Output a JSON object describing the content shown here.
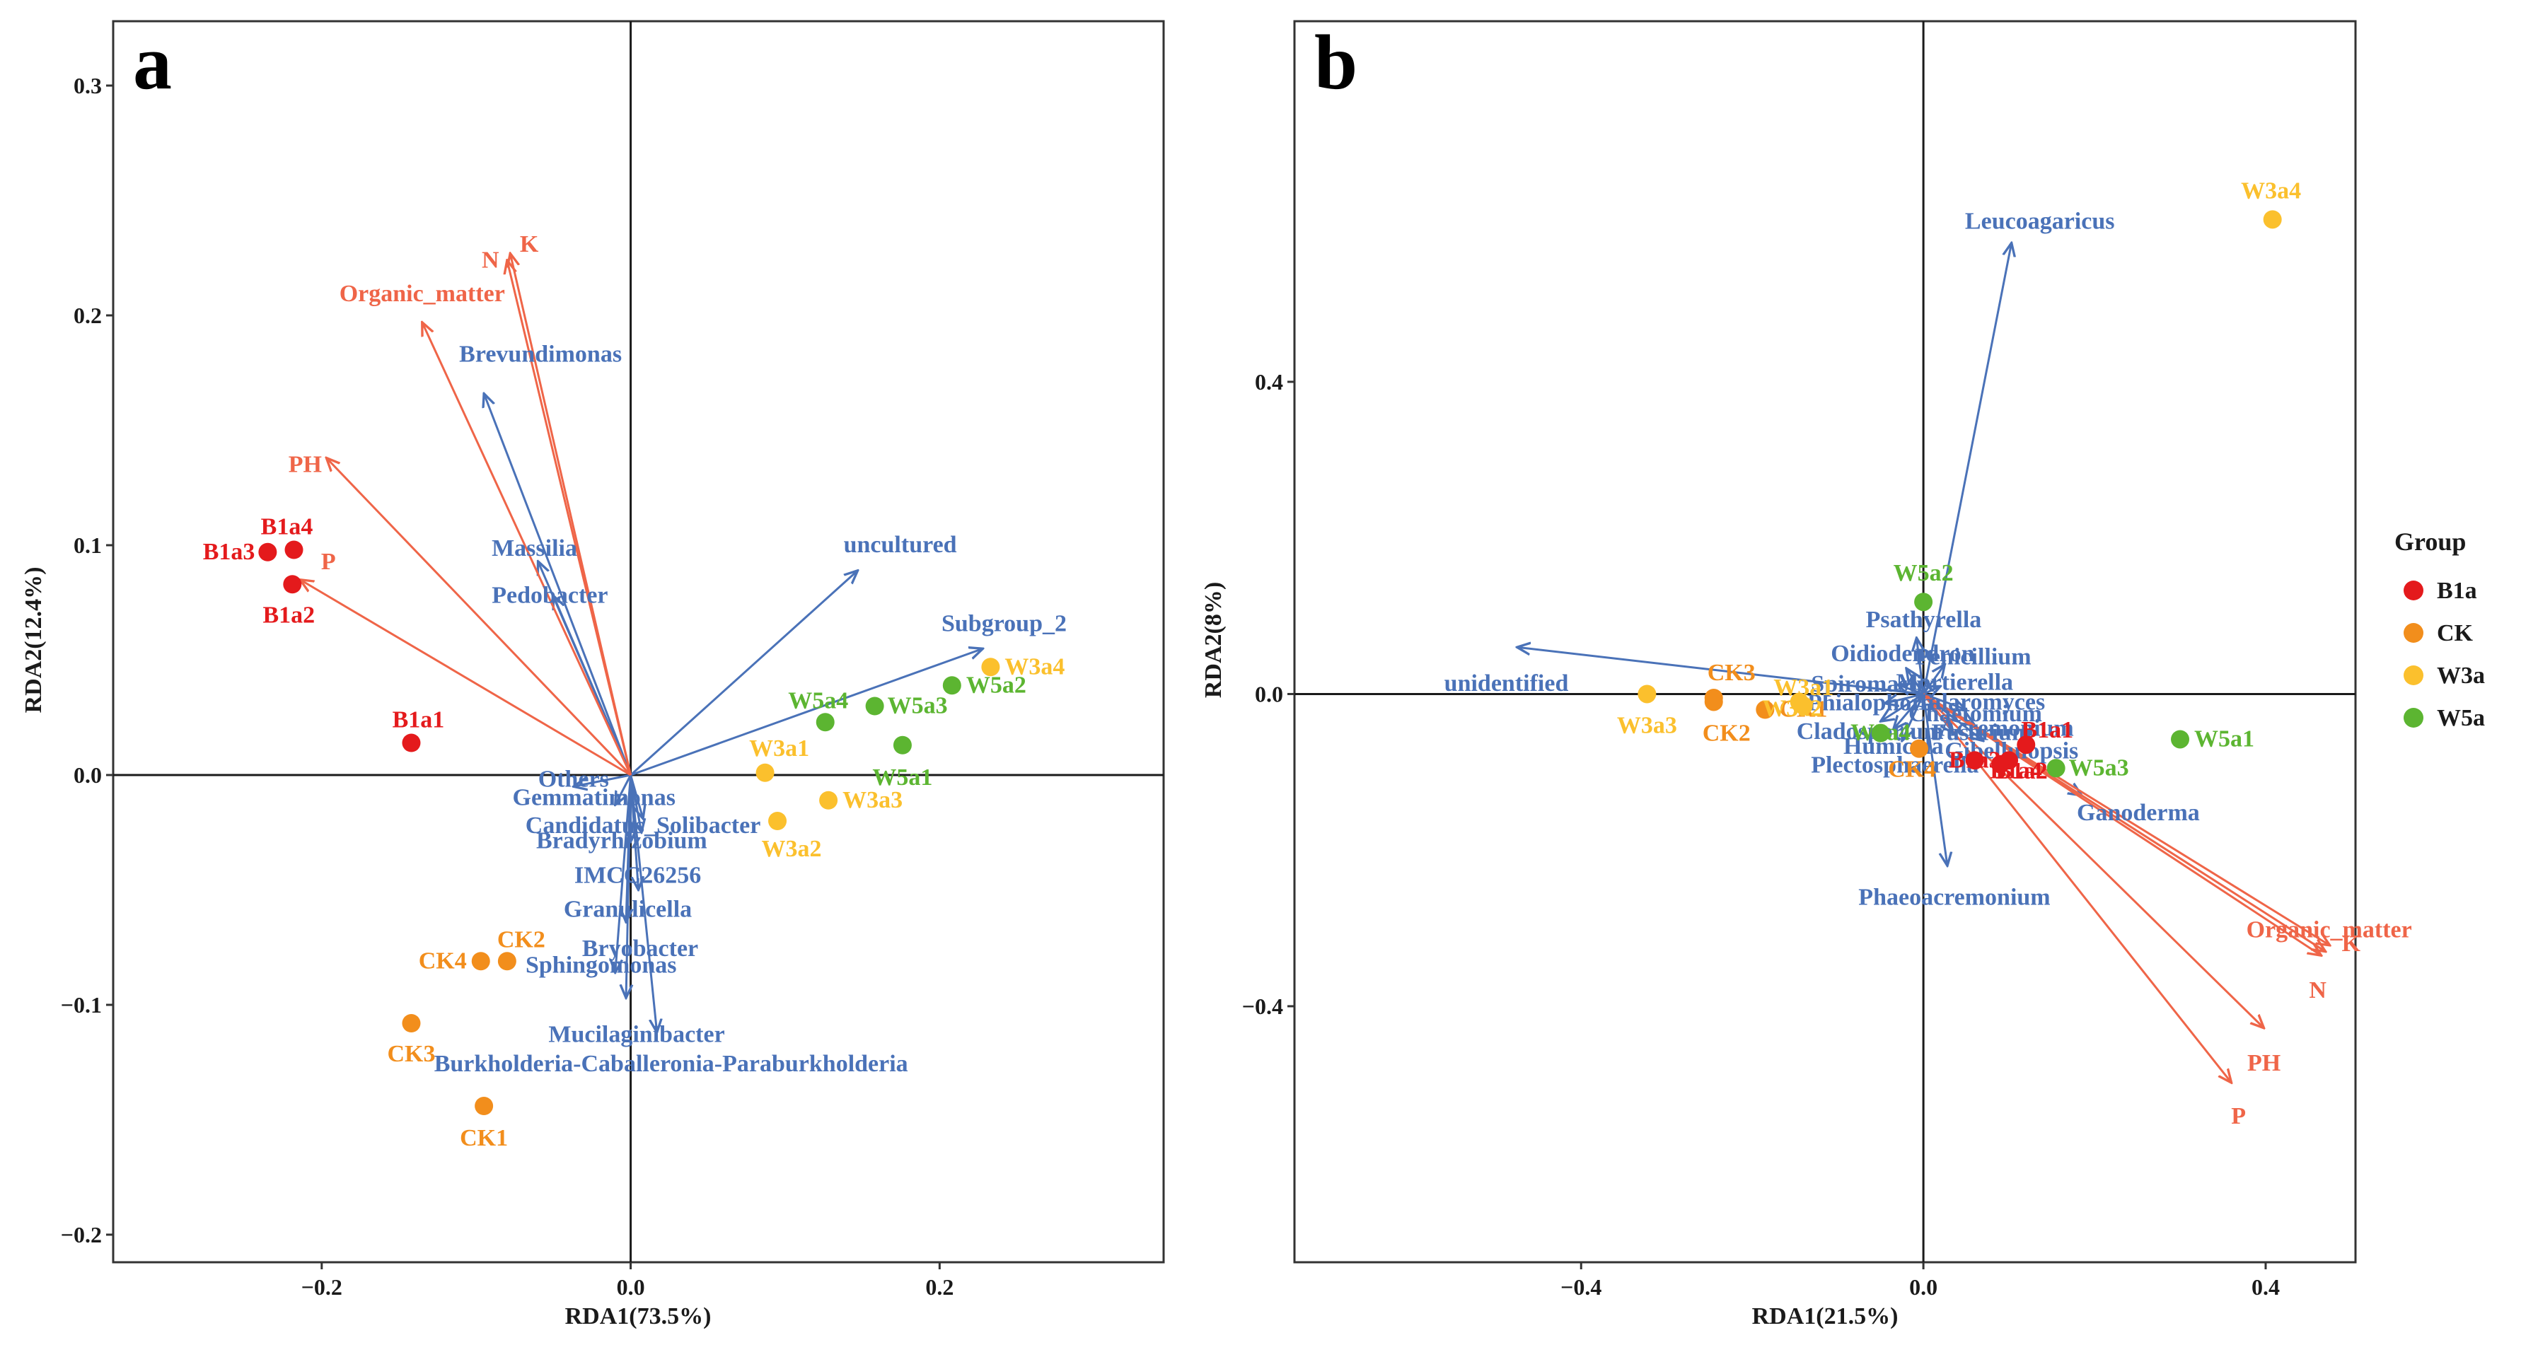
{
  "colors": {
    "B1a": "#e41a1c",
    "CK": "#f28e1c",
    "W3a": "#fbc02d",
    "W5a": "#5cb531",
    "env": "#ef6548",
    "species": "#4a72b8"
  },
  "legend": {
    "title": "Group",
    "items": [
      "B1a",
      "CK",
      "W3a",
      "W5a"
    ]
  },
  "chart_data": [
    {
      "type": "scatter",
      "panel_label": "a",
      "xlabel": "RDA1(73.5%)",
      "ylabel": "RDA2(12.4%)",
      "xlim": [
        -0.335,
        0.345
      ],
      "ylim": [
        -0.212,
        0.328
      ],
      "xticks": [
        -0.2,
        0.0,
        0.2
      ],
      "xtick_labels": [
        "−0.2",
        "0.0",
        "0.2"
      ],
      "yticks": [
        -0.2,
        -0.1,
        0.0,
        0.1,
        0.2,
        0.3
      ],
      "ytick_labels": [
        "−0.2",
        "−0.1",
        "0.0",
        "0.1",
        "0.2",
        "0.3"
      ],
      "points": [
        {
          "label": "B1a3",
          "group": "B1a",
          "x": -0.235,
          "y": 0.097
        },
        {
          "label": "B1a4",
          "group": "B1a",
          "x": -0.218,
          "y": 0.098
        },
        {
          "label": "B1a2",
          "group": "B1a",
          "x": -0.219,
          "y": 0.083
        },
        {
          "label": "B1a1",
          "group": "B1a",
          "x": -0.142,
          "y": 0.014
        },
        {
          "label": "CK2",
          "group": "CK",
          "x": -0.08,
          "y": -0.081
        },
        {
          "label": "CK4",
          "group": "CK",
          "x": -0.097,
          "y": -0.081
        },
        {
          "label": "CK3",
          "group": "CK",
          "x": -0.142,
          "y": -0.108
        },
        {
          "label": "CK1",
          "group": "CK",
          "x": -0.095,
          "y": -0.144
        },
        {
          "label": "W3a4",
          "group": "W3a",
          "x": 0.233,
          "y": 0.047
        },
        {
          "label": "W3a1",
          "group": "W3a",
          "x": 0.087,
          "y": 0.001
        },
        {
          "label": "W3a3",
          "group": "W3a",
          "x": 0.128,
          "y": -0.011
        },
        {
          "label": "W3a2",
          "group": "W3a",
          "x": 0.095,
          "y": -0.02
        },
        {
          "label": "W5a2",
          "group": "W5a",
          "x": 0.208,
          "y": 0.039
        },
        {
          "label": "W5a4",
          "group": "W5a",
          "x": 0.126,
          "y": 0.023
        },
        {
          "label": "W5a3",
          "group": "W5a",
          "x": 0.158,
          "y": 0.03
        },
        {
          "label": "W5a1",
          "group": "W5a",
          "x": 0.176,
          "y": 0.013
        }
      ],
      "env_vectors": [
        {
          "label": "K",
          "x": -0.08,
          "y": 0.224
        },
        {
          "label": "N",
          "x": -0.078,
          "y": 0.227
        },
        {
          "label": "Organic_matter",
          "x": -0.135,
          "y": 0.197
        },
        {
          "label": "PH",
          "x": -0.197,
          "y": 0.138
        },
        {
          "label": "P",
          "x": -0.214,
          "y": 0.085
        }
      ],
      "species_vectors": [
        {
          "label": "Brevundimonas",
          "x": -0.095,
          "y": 0.166
        },
        {
          "label": "Massilia",
          "x": -0.06,
          "y": 0.093
        },
        {
          "label": "Pedobacter",
          "x": -0.05,
          "y": 0.078
        },
        {
          "label": "uncultured",
          "x": 0.147,
          "y": 0.089
        },
        {
          "label": "Subgroup_2",
          "x": 0.228,
          "y": 0.055
        },
        {
          "label": "Others",
          "x": -0.037,
          "y": -0.005
        },
        {
          "label": "Gemmatimonas",
          "x": -0.01,
          "y": -0.013
        },
        {
          "label": "Candidatus_Solibacter",
          "x": 0.008,
          "y": -0.019
        },
        {
          "label": "Bradyrhizobium",
          "x": 0.007,
          "y": -0.025
        },
        {
          "label": "IMCC26256",
          "x": 0.0,
          "y": -0.029
        },
        {
          "label": "Granulicella",
          "x": 0.005,
          "y": -0.05
        },
        {
          "label": "Bryobacter",
          "x": -0.003,
          "y": -0.064
        },
        {
          "label": "Sphingomonas",
          "x": -0.01,
          "y": -0.086
        },
        {
          "label": "Mucilaginibacter",
          "x": -0.003,
          "y": -0.097
        },
        {
          "label": "Burkholderia-Caballeronia-Paraburkholderia",
          "x": 0.017,
          "y": -0.112
        }
      ]
    },
    {
      "type": "scatter",
      "panel_label": "b",
      "xlabel": "RDA1(21.5%)",
      "ylabel": "RDA2(8%)",
      "xlim": [
        -0.735,
        0.505
      ],
      "ylim": [
        -0.728,
        0.862
      ],
      "xticks": [
        -0.4,
        0.0,
        0.4
      ],
      "xtick_labels": [
        "−0.4",
        "0.0",
        "0.4"
      ],
      "yticks": [
        -0.4,
        0.0,
        0.4
      ],
      "ytick_labels": [
        "−0.4",
        "0.0",
        "0.4"
      ],
      "points": [
        {
          "label": "W3a4",
          "group": "W3a",
          "x": 0.408,
          "y": 0.608
        },
        {
          "label": "W5a2",
          "group": "W5a",
          "x": 0.0,
          "y": 0.118
        },
        {
          "label": "W5a1",
          "group": "W5a",
          "x": 0.3,
          "y": -0.058
        },
        {
          "label": "W5a3",
          "group": "W5a",
          "x": 0.155,
          "y": -0.095
        },
        {
          "label": "W5a4",
          "group": "W5a",
          "x": -0.05,
          "y": -0.05
        },
        {
          "label": "CK3",
          "group": "CK",
          "x": -0.245,
          "y": -0.005
        },
        {
          "label": "CK2",
          "group": "CK",
          "x": -0.245,
          "y": -0.01
        },
        {
          "label": "CK1",
          "group": "CK",
          "x": -0.185,
          "y": -0.02
        },
        {
          "label": "CK4",
          "group": "CK",
          "x": -0.005,
          "y": -0.07
        },
        {
          "label": "W3a3",
          "group": "W3a",
          "x": -0.323,
          "y": 0.0
        },
        {
          "label": "W3a2",
          "group": "W3a",
          "x": -0.145,
          "y": -0.01
        },
        {
          "label": "W3a1",
          "group": "W3a",
          "x": -0.14,
          "y": -0.015
        },
        {
          "label": "B1a1",
          "group": "B1a",
          "x": 0.12,
          "y": -0.065
        },
        {
          "label": "B1a2",
          "group": "B1a",
          "x": 0.09,
          "y": -0.09
        },
        {
          "label": "B1a3",
          "group": "B1a",
          "x": 0.06,
          "y": -0.085
        },
        {
          "label": "B1a4",
          "group": "B1a",
          "x": 0.1,
          "y": -0.085
        }
      ],
      "env_vectors": [
        {
          "label": "K",
          "x": 0.475,
          "y": -0.322
        },
        {
          "label": "Organic_matter",
          "x": 0.47,
          "y": -0.33
        },
        {
          "label": "N",
          "x": 0.465,
          "y": -0.335
        },
        {
          "label": "PH",
          "x": 0.398,
          "y": -0.428
        },
        {
          "label": "P",
          "x": 0.36,
          "y": -0.498
        }
      ],
      "species_vectors": [
        {
          "label": "Leucoagaricus",
          "x": 0.103,
          "y": 0.578
        },
        {
          "label": "Psathyrella",
          "x": -0.008,
          "y": 0.072
        },
        {
          "label": "unidentified",
          "x": -0.475,
          "y": 0.06
        },
        {
          "label": "Oidiodendron",
          "x": -0.02,
          "y": 0.033
        },
        {
          "label": "Penicillium",
          "x": 0.025,
          "y": 0.038
        },
        {
          "label": "Spiromastix",
          "x": -0.03,
          "y": 0.012
        },
        {
          "label": "Mortierella",
          "x": 0.02,
          "y": 0.01
        },
        {
          "label": "Phialophora",
          "x": -0.045,
          "y": -0.012
        },
        {
          "label": "Cladosporium",
          "x": -0.05,
          "y": -0.035
        },
        {
          "label": "Humicola",
          "x": -0.035,
          "y": -0.045
        },
        {
          "label": "Plectosphaerella",
          "x": -0.025,
          "y": -0.06
        },
        {
          "label": "Talaromyces",
          "x": 0.05,
          "y": -0.02
        },
        {
          "label": "Chaetomium",
          "x": 0.04,
          "y": -0.035
        },
        {
          "label": "Fusarium",
          "x": 0.035,
          "y": -0.05
        },
        {
          "label": "Acremonium",
          "x": 0.06,
          "y": -0.04
        },
        {
          "label": "Gibellulopsis",
          "x": 0.07,
          "y": -0.06
        },
        {
          "label": "Ganoderma",
          "x": 0.185,
          "y": -0.13
        },
        {
          "label": "Phaeoacremonium",
          "x": 0.028,
          "y": -0.22
        }
      ]
    }
  ]
}
